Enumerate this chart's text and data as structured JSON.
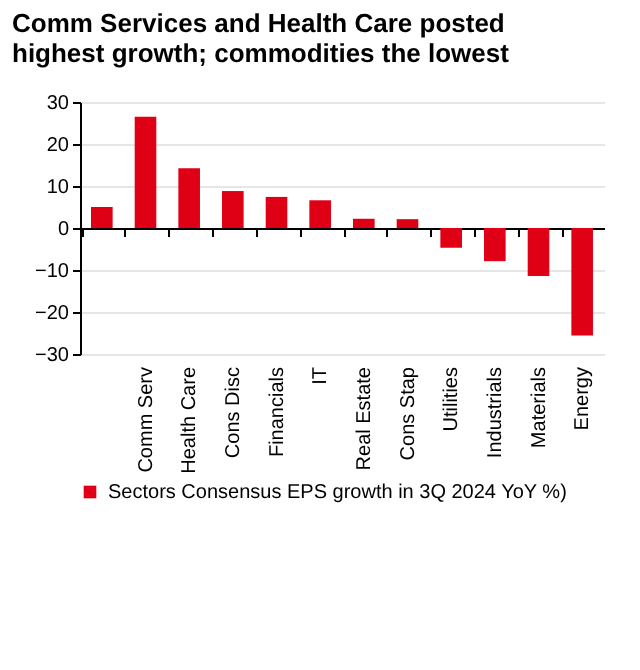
{
  "chart_data": {
    "type": "bar",
    "title": [
      "Comm Services and Health Care posted",
      "highest growth; commodities the lowest"
    ],
    "categories": [
      null,
      "Comm Serv",
      "Health Care",
      "Cons Disc",
      "Financials",
      "IT",
      "Real Estate",
      "Cons Stap",
      "Utilities",
      "Industrials",
      "Materials",
      "Energy"
    ],
    "series": [
      {
        "name": "Sectors Consensus EPS growth in 3Q 2024 YoY %)",
        "color": "#e00016",
        "values": [
          5,
          26.5,
          14.2,
          8.8,
          7.4,
          6.6,
          2.2,
          2.1,
          -4.7,
          -7.9,
          -11.4,
          -25.6
        ]
      }
    ],
    "ylim": [
      -30,
      30
    ],
    "yticks": [
      -30,
      -20,
      -10,
      0,
      10,
      20,
      30
    ],
    "grid": "y",
    "legend": "bottom"
  }
}
